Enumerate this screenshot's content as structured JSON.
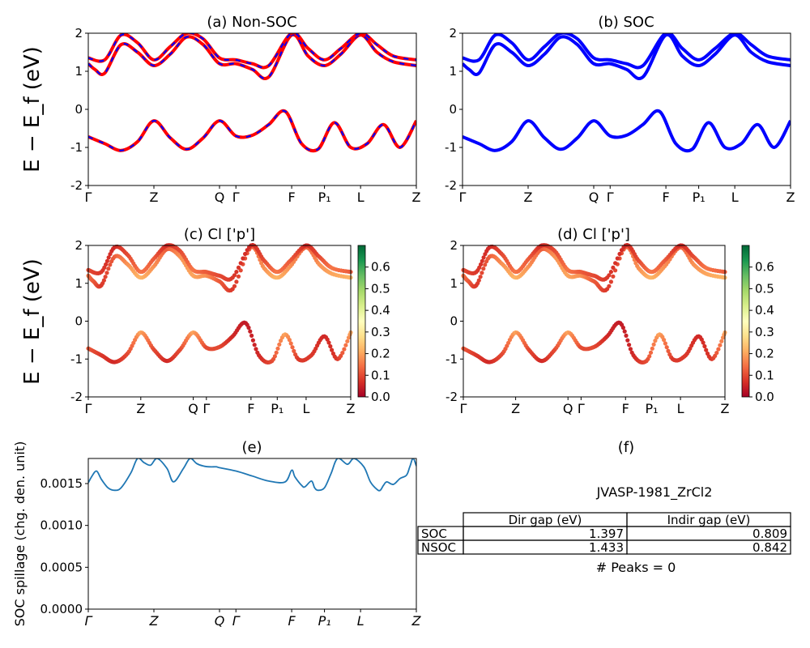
{
  "kpath_labels": [
    "Γ",
    "Z",
    "Q",
    "Γ",
    "F",
    "P₁",
    "L",
    "Z"
  ],
  "kpath_positions": [
    0,
    0.2,
    0.4,
    0.45,
    0.62,
    0.72,
    0.83,
    1.0
  ],
  "energy_ylabel": "E − E_f (eV)",
  "colors": {
    "nonsoc_band": "#ff0000",
    "nonsoc_dash": "#0000ff",
    "soc_band": "#0000ff",
    "spillage_line": "#1f77b4",
    "cmap": [
      "#a50026",
      "#d73027",
      "#f46d43",
      "#fdae61",
      "#fee08b",
      "#ffffbf",
      "#d9ef8b",
      "#a6d96a",
      "#66bd63",
      "#1a9850",
      "#006837"
    ]
  },
  "chart_data": [
    {
      "id": "a",
      "type": "line",
      "title": "(a) Non-SOC",
      "ylim": [
        -2,
        2
      ],
      "yticks": [
        -2,
        -1,
        0,
        1,
        2
      ],
      "series": [
        {
          "x": [
            0,
            0.05,
            0.1,
            0.15,
            0.2,
            0.25,
            0.3,
            0.35,
            0.4,
            0.45,
            0.5,
            0.55,
            0.6,
            0.65,
            0.7,
            0.75,
            0.8,
            0.85,
            0.9,
            0.95,
            1.0
          ],
          "y": [
            -0.72,
            -0.9,
            -1.08,
            -0.85,
            -0.3,
            -0.75,
            -1.05,
            -0.75,
            -0.3,
            -0.7,
            -0.68,
            -0.4,
            -0.05,
            -0.9,
            -1.05,
            -0.35,
            -1.0,
            -0.9,
            -0.4,
            -1.0,
            -0.3
          ]
        },
        {
          "x": [
            0,
            0.02,
            0.05,
            0.1,
            0.15,
            0.2,
            0.25,
            0.3,
            0.35,
            0.4,
            0.45,
            0.5,
            0.55,
            0.62,
            0.67,
            0.72,
            0.77,
            0.83,
            0.88,
            0.93,
            1.0
          ],
          "y": [
            1.2,
            1.05,
            0.95,
            1.7,
            1.5,
            1.15,
            1.45,
            1.9,
            1.7,
            1.2,
            1.2,
            1.05,
            0.85,
            1.95,
            1.4,
            1.15,
            1.45,
            1.95,
            1.5,
            1.25,
            1.15
          ]
        },
        {
          "x": [
            0,
            0.05,
            0.1,
            0.15,
            0.2,
            0.25,
            0.3,
            0.35,
            0.4,
            0.45,
            0.5,
            0.55,
            0.62,
            0.67,
            0.72,
            0.77,
            0.83,
            0.88,
            0.93,
            1.0
          ],
          "y": [
            1.35,
            1.3,
            1.95,
            1.75,
            1.3,
            1.65,
            2.0,
            1.85,
            1.35,
            1.3,
            1.2,
            1.15,
            2.0,
            1.6,
            1.3,
            1.6,
            2.0,
            1.7,
            1.4,
            1.3
          ]
        }
      ]
    },
    {
      "id": "b",
      "type": "line",
      "title": "(b) SOC",
      "ylim": [
        -2,
        2
      ],
      "yticks": [
        -2,
        -1,
        0,
        1,
        2
      ],
      "series": [
        {
          "x": [
            0,
            0.05,
            0.1,
            0.15,
            0.2,
            0.25,
            0.3,
            0.35,
            0.4,
            0.45,
            0.5,
            0.55,
            0.6,
            0.65,
            0.7,
            0.75,
            0.8,
            0.85,
            0.9,
            0.95,
            1.0
          ],
          "y": [
            -0.72,
            -0.9,
            -1.08,
            -0.85,
            -0.3,
            -0.75,
            -1.05,
            -0.75,
            -0.3,
            -0.7,
            -0.68,
            -0.4,
            -0.05,
            -0.9,
            -1.05,
            -0.35,
            -1.0,
            -0.9,
            -0.4,
            -1.0,
            -0.3
          ]
        },
        {
          "x": [
            0,
            0.02,
            0.05,
            0.1,
            0.15,
            0.2,
            0.25,
            0.3,
            0.35,
            0.4,
            0.45,
            0.5,
            0.55,
            0.62,
            0.67,
            0.72,
            0.77,
            0.83,
            0.88,
            0.93,
            1.0
          ],
          "y": [
            1.2,
            1.05,
            0.95,
            1.7,
            1.5,
            1.15,
            1.45,
            1.9,
            1.7,
            1.2,
            1.2,
            1.05,
            0.85,
            1.95,
            1.4,
            1.15,
            1.45,
            1.95,
            1.5,
            1.25,
            1.15
          ]
        },
        {
          "x": [
            0,
            0.05,
            0.1,
            0.15,
            0.2,
            0.25,
            0.3,
            0.35,
            0.4,
            0.45,
            0.5,
            0.55,
            0.62,
            0.67,
            0.72,
            0.77,
            0.83,
            0.88,
            0.93,
            1.0
          ],
          "y": [
            1.35,
            1.3,
            1.95,
            1.75,
            1.3,
            1.65,
            2.0,
            1.85,
            1.35,
            1.3,
            1.2,
            1.15,
            2.0,
            1.6,
            1.3,
            1.6,
            2.0,
            1.7,
            1.4,
            1.3
          ]
        }
      ]
    },
    {
      "id": "c",
      "type": "scatter",
      "title": "(c)  Cl ['p']",
      "ylim": [
        -2,
        2
      ],
      "yticks": [
        -2,
        -1,
        0,
        1,
        2
      ],
      "colorbar": {
        "min": 0.0,
        "max": 0.7,
        "ticks": [
          "0.0",
          "0.1",
          "0.2",
          "0.3",
          "0.4",
          "0.5",
          "0.6"
        ]
      },
      "series": [
        {
          "x": [
            0,
            0.05,
            0.1,
            0.15,
            0.2,
            0.25,
            0.3,
            0.35,
            0.4,
            0.45,
            0.5,
            0.55,
            0.6,
            0.65,
            0.7,
            0.75,
            0.8,
            0.85,
            0.9,
            0.95,
            1.0
          ],
          "y": [
            -0.72,
            -0.9,
            -1.08,
            -0.85,
            -0.3,
            -0.75,
            -1.05,
            -0.75,
            -0.3,
            -0.7,
            -0.68,
            -0.4,
            -0.05,
            -0.9,
            -1.05,
            -0.35,
            -1.0,
            -0.9,
            -0.4,
            -1.0,
            -0.3
          ],
          "weight": [
            0.12,
            0.08,
            0.06,
            0.1,
            0.2,
            0.1,
            0.06,
            0.1,
            0.2,
            0.1,
            0.1,
            0.06,
            0.04,
            0.06,
            0.1,
            0.2,
            0.08,
            0.08,
            0.06,
            0.08,
            0.2
          ]
        },
        {
          "x": [
            0,
            0.02,
            0.05,
            0.1,
            0.15,
            0.2,
            0.25,
            0.3,
            0.35,
            0.4,
            0.45,
            0.5,
            0.55,
            0.62,
            0.67,
            0.72,
            0.77,
            0.83,
            0.88,
            0.93,
            1.0
          ],
          "y": [
            1.2,
            1.05,
            0.95,
            1.7,
            1.5,
            1.15,
            1.45,
            1.9,
            1.7,
            1.2,
            1.2,
            1.05,
            0.85,
            1.95,
            1.4,
            1.15,
            1.45,
            1.95,
            1.5,
            1.25,
            1.15
          ],
          "weight": [
            0.15,
            0.12,
            0.08,
            0.12,
            0.18,
            0.22,
            0.18,
            0.12,
            0.18,
            0.2,
            0.18,
            0.12,
            0.08,
            0.12,
            0.18,
            0.22,
            0.18,
            0.12,
            0.18,
            0.2,
            0.22
          ]
        },
        {
          "x": [
            0,
            0.05,
            0.1,
            0.15,
            0.2,
            0.25,
            0.3,
            0.35,
            0.4,
            0.45,
            0.5,
            0.55,
            0.62,
            0.67,
            0.72,
            0.77,
            0.83,
            0.88,
            0.93,
            1.0
          ],
          "y": [
            1.35,
            1.3,
            1.95,
            1.75,
            1.3,
            1.65,
            2.0,
            1.85,
            1.35,
            1.3,
            1.2,
            1.15,
            2.0,
            1.6,
            1.3,
            1.6,
            2.0,
            1.7,
            1.4,
            1.3
          ],
          "weight": [
            0.1,
            0.08,
            0.06,
            0.1,
            0.15,
            0.12,
            0.06,
            0.1,
            0.15,
            0.12,
            0.1,
            0.08,
            0.06,
            0.1,
            0.15,
            0.12,
            0.06,
            0.1,
            0.15,
            0.12
          ]
        }
      ]
    },
    {
      "id": "d",
      "type": "scatter",
      "title": "(d) Cl ['p']",
      "ylim": [
        -2,
        2
      ],
      "yticks": [
        -2,
        -1,
        0,
        1,
        2
      ],
      "colorbar": {
        "min": 0.0,
        "max": 0.7,
        "ticks": [
          "0.0",
          "0.1",
          "0.2",
          "0.3",
          "0.4",
          "0.5",
          "0.6"
        ]
      },
      "series": [
        {
          "x": [
            0,
            0.05,
            0.1,
            0.15,
            0.2,
            0.25,
            0.3,
            0.35,
            0.4,
            0.45,
            0.5,
            0.55,
            0.6,
            0.65,
            0.7,
            0.75,
            0.8,
            0.85,
            0.9,
            0.95,
            1.0
          ],
          "y": [
            -0.72,
            -0.9,
            -1.08,
            -0.85,
            -0.3,
            -0.75,
            -1.05,
            -0.75,
            -0.3,
            -0.7,
            -0.68,
            -0.4,
            -0.05,
            -0.9,
            -1.05,
            -0.35,
            -1.0,
            -0.9,
            -0.4,
            -1.0,
            -0.3
          ],
          "weight": [
            0.12,
            0.08,
            0.06,
            0.1,
            0.2,
            0.1,
            0.06,
            0.1,
            0.2,
            0.1,
            0.1,
            0.06,
            0.04,
            0.06,
            0.1,
            0.2,
            0.08,
            0.08,
            0.06,
            0.08,
            0.2
          ]
        },
        {
          "x": [
            0,
            0.02,
            0.05,
            0.1,
            0.15,
            0.2,
            0.25,
            0.3,
            0.35,
            0.4,
            0.45,
            0.5,
            0.55,
            0.62,
            0.67,
            0.72,
            0.77,
            0.83,
            0.88,
            0.93,
            1.0
          ],
          "y": [
            1.2,
            1.05,
            0.95,
            1.7,
            1.5,
            1.15,
            1.45,
            1.9,
            1.7,
            1.2,
            1.2,
            1.05,
            0.85,
            1.95,
            1.4,
            1.15,
            1.45,
            1.95,
            1.5,
            1.25,
            1.15
          ],
          "weight": [
            0.15,
            0.12,
            0.08,
            0.12,
            0.18,
            0.22,
            0.18,
            0.12,
            0.18,
            0.2,
            0.18,
            0.12,
            0.08,
            0.12,
            0.18,
            0.22,
            0.18,
            0.12,
            0.18,
            0.2,
            0.22
          ]
        },
        {
          "x": [
            0,
            0.05,
            0.1,
            0.15,
            0.2,
            0.25,
            0.3,
            0.35,
            0.4,
            0.45,
            0.5,
            0.55,
            0.62,
            0.67,
            0.72,
            0.77,
            0.83,
            0.88,
            0.93,
            1.0
          ],
          "y": [
            1.35,
            1.3,
            1.95,
            1.75,
            1.3,
            1.65,
            2.0,
            1.85,
            1.35,
            1.3,
            1.2,
            1.15,
            2.0,
            1.6,
            1.3,
            1.6,
            2.0,
            1.7,
            1.4,
            1.3
          ],
          "weight": [
            0.1,
            0.08,
            0.06,
            0.1,
            0.15,
            0.12,
            0.06,
            0.1,
            0.15,
            0.12,
            0.1,
            0.08,
            0.06,
            0.1,
            0.15,
            0.12,
            0.06,
            0.1,
            0.15,
            0.12
          ]
        }
      ]
    },
    {
      "id": "e",
      "type": "line",
      "title": "(e)",
      "ylabel": "SOC spillage (chg. den. unit)",
      "ylim": [
        0,
        0.0018
      ],
      "yticks": [
        0,
        0.0005,
        0.001,
        0.0015
      ],
      "ytick_labels": [
        "0.0000",
        "0.0005",
        "0.0010",
        "0.0015"
      ],
      "x_italic": true,
      "series": [
        {
          "x": [
            0,
            0.01,
            0.025,
            0.04,
            0.06,
            0.08,
            0.1,
            0.13,
            0.15,
            0.17,
            0.19,
            0.21,
            0.24,
            0.26,
            0.29,
            0.31,
            0.33,
            0.35,
            0.37,
            0.39,
            0.4,
            0.45,
            0.5,
            0.55,
            0.6,
            0.62,
            0.63,
            0.65,
            0.66,
            0.68,
            0.69,
            0.7,
            0.72,
            0.74,
            0.76,
            0.79,
            0.81,
            0.84,
            0.86,
            0.88,
            0.89,
            0.9,
            0.91,
            0.93,
            0.95,
            0.97,
            0.98,
            0.99,
            1.0
          ],
          "y": [
            0.00151,
            0.00158,
            0.00165,
            0.00155,
            0.00145,
            0.00142,
            0.00145,
            0.00163,
            0.0018,
            0.00175,
            0.00172,
            0.0018,
            0.00168,
            0.00152,
            0.00168,
            0.0018,
            0.00174,
            0.00171,
            0.0017,
            0.0017,
            0.00169,
            0.00165,
            0.00159,
            0.00153,
            0.00152,
            0.00166,
            0.00158,
            0.00148,
            0.00146,
            0.00153,
            0.00145,
            0.00142,
            0.00145,
            0.00162,
            0.0018,
            0.00173,
            0.0018,
            0.0017,
            0.00152,
            0.00143,
            0.00142,
            0.00148,
            0.00152,
            0.00149,
            0.00156,
            0.0016,
            0.0017,
            0.0018,
            0.00171
          ]
        }
      ]
    }
  ],
  "panel_f": {
    "title": "(f)",
    "material": "JVASP-1981_ZrCl2",
    "table": {
      "col_headers": [
        "Dir gap (eV)",
        "Indir gap (eV)"
      ],
      "rows": [
        {
          "label": "SOC",
          "values": [
            "1.397",
            "0.809"
          ]
        },
        {
          "label": "NSOC",
          "values": [
            "1.433",
            "0.842"
          ]
        }
      ]
    },
    "peaks": "# Peaks = 0"
  }
}
